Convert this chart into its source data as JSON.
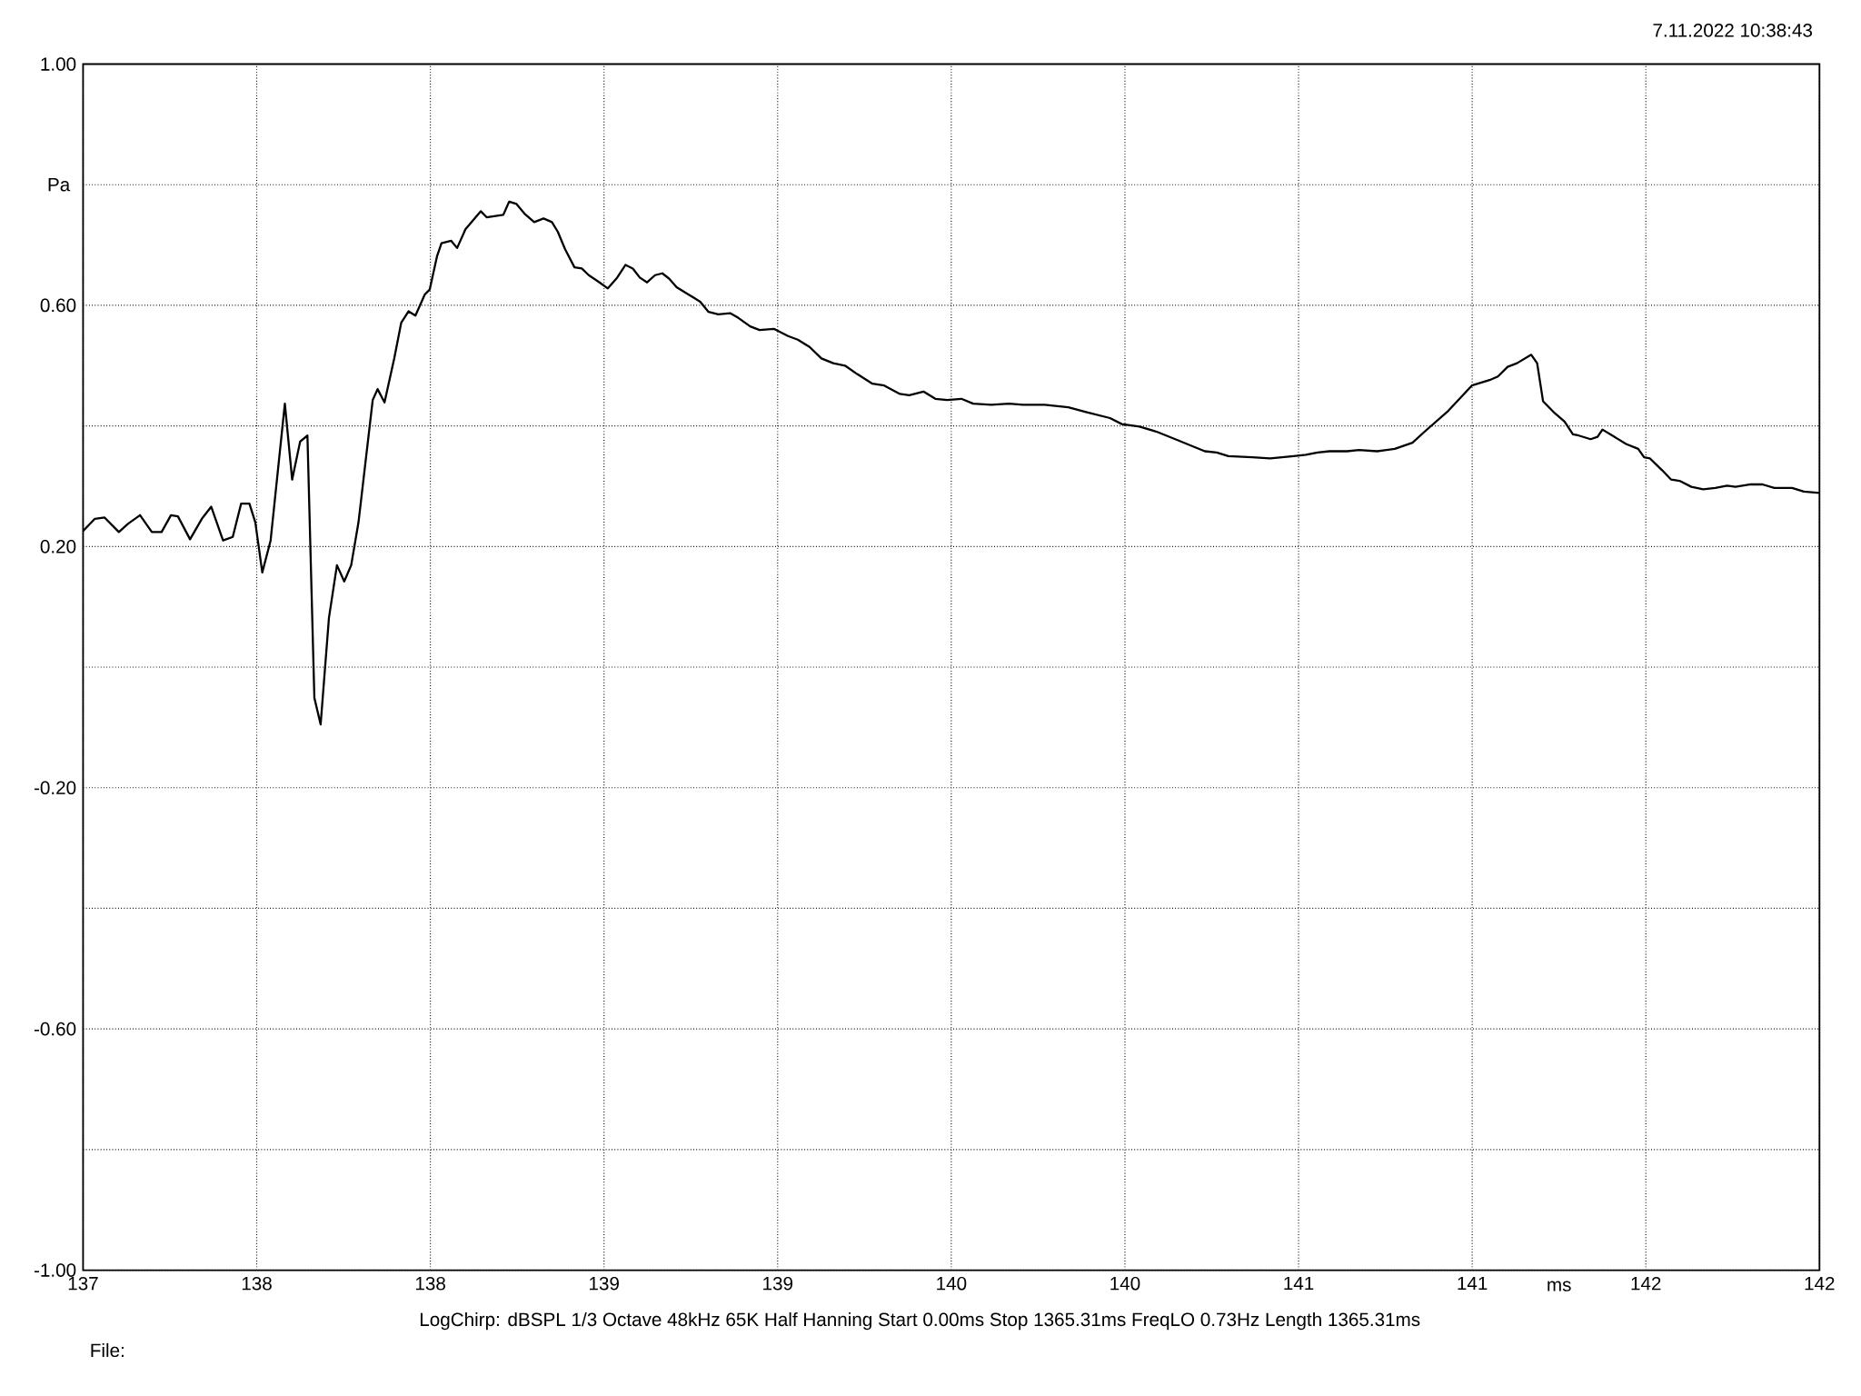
{
  "chart_data": {
    "type": "line",
    "subtitle": "7.11.2022 10:38:43",
    "xlabel": "ms",
    "ylabel": "Pa",
    "annotations": [
      "LogChirp: dBSPL 1/3 Octave 48kHz 65K Half Hanning Start 0.00ms Stop 1365.31ms FreqLO 0.73Hz Length 1365.31ms",
      "File:"
    ],
    "x": [
      137.0,
      137.034,
      137.062,
      137.103,
      137.13,
      137.164,
      137.198,
      137.226,
      137.253,
      137.273,
      137.308,
      137.342,
      137.369,
      137.403,
      137.431,
      137.455,
      137.479,
      137.496,
      137.516,
      137.54,
      137.581,
      137.602,
      137.625,
      137.646,
      137.666,
      137.684,
      137.708,
      137.731,
      137.752,
      137.772,
      137.793,
      137.834,
      137.848,
      137.868,
      137.896,
      137.916,
      137.937,
      137.957,
      137.984,
      137.998,
      138.019,
      138.032,
      138.06,
      138.077,
      138.101,
      138.145,
      138.162,
      138.21,
      138.227,
      138.248,
      138.271,
      138.299,
      138.326,
      138.35,
      138.367,
      138.388,
      138.415,
      138.436,
      138.456,
      138.487,
      138.511,
      138.538,
      138.562,
      138.583,
      138.603,
      138.624,
      138.647,
      138.668,
      138.688,
      138.709,
      138.743,
      138.777,
      138.801,
      138.829,
      138.863,
      138.887,
      138.921,
      138.948,
      138.989,
      139.03,
      139.058,
      139.092,
      139.126,
      139.16,
      139.194,
      139.229,
      139.273,
      139.307,
      139.352,
      139.379,
      139.42,
      139.454,
      139.488,
      139.529,
      139.563,
      139.615,
      139.666,
      139.707,
      139.769,
      139.837,
      139.888,
      139.957,
      139.991,
      140.042,
      140.093,
      140.145,
      140.179,
      140.23,
      140.264,
      140.298,
      140.367,
      140.418,
      140.452,
      140.486,
      140.521,
      140.555,
      140.589,
      140.64,
      140.674,
      140.726,
      140.777,
      140.828,
      140.862,
      140.931,
      140.999,
      141.05,
      141.074,
      141.102,
      141.129,
      141.17,
      141.187,
      141.204,
      141.238,
      141.266,
      141.29,
      141.307,
      141.341,
      141.361,
      141.375,
      141.409,
      141.443,
      141.478,
      141.495,
      141.512,
      141.546,
      141.573,
      141.597,
      141.631,
      141.665,
      141.7,
      141.734,
      141.758,
      141.802,
      141.836,
      141.87,
      141.921,
      141.955,
      142.0
    ],
    "series": [
      {
        "color": "#000000",
        "values": [
          0.226,
          0.246,
          0.248,
          0.224,
          0.238,
          0.252,
          0.224,
          0.224,
          0.252,
          0.25,
          0.212,
          0.246,
          0.266,
          0.21,
          0.216,
          0.271,
          0.271,
          0.24,
          0.157,
          0.21,
          0.437,
          0.311,
          0.374,
          0.384,
          -0.051,
          -0.095,
          0.082,
          0.169,
          0.142,
          0.169,
          0.24,
          0.443,
          0.461,
          0.439,
          0.512,
          0.571,
          0.59,
          0.583,
          0.618,
          0.626,
          0.681,
          0.703,
          0.707,
          0.695,
          0.726,
          0.756,
          0.746,
          0.75,
          0.772,
          0.768,
          0.752,
          0.738,
          0.744,
          0.738,
          0.722,
          0.693,
          0.663,
          0.661,
          0.65,
          0.638,
          0.628,
          0.646,
          0.667,
          0.661,
          0.646,
          0.638,
          0.65,
          0.653,
          0.644,
          0.63,
          0.618,
          0.606,
          0.589,
          0.585,
          0.587,
          0.579,
          0.565,
          0.559,
          0.561,
          0.549,
          0.543,
          0.531,
          0.512,
          0.504,
          0.5,
          0.486,
          0.47,
          0.467,
          0.453,
          0.451,
          0.457,
          0.445,
          0.443,
          0.445,
          0.437,
          0.435,
          0.437,
          0.435,
          0.435,
          0.431,
          0.423,
          0.413,
          0.403,
          0.399,
          0.39,
          0.378,
          0.37,
          0.358,
          0.356,
          0.35,
          0.348,
          0.346,
          0.348,
          0.35,
          0.352,
          0.356,
          0.358,
          0.358,
          0.36,
          0.358,
          0.362,
          0.372,
          0.39,
          0.425,
          0.467,
          0.476,
          0.482,
          0.498,
          0.504,
          0.518,
          0.504,
          0.441,
          0.421,
          0.407,
          0.386,
          0.384,
          0.378,
          0.382,
          0.394,
          0.382,
          0.37,
          0.362,
          0.348,
          0.346,
          0.327,
          0.311,
          0.309,
          0.299,
          0.295,
          0.297,
          0.301,
          0.299,
          0.303,
          0.303,
          0.297,
          0.297,
          0.291,
          0.289
        ]
      }
    ],
    "xlim": [
      137,
      142
    ],
    "ylim": [
      -1,
      1
    ],
    "xticks": [
      {
        "value": 137.0,
        "label": "137"
      },
      {
        "value": 137.5,
        "label": "138"
      },
      {
        "value": 138.0,
        "label": "138"
      },
      {
        "value": 138.5,
        "label": "139"
      },
      {
        "value": 139.0,
        "label": "139"
      },
      {
        "value": 139.5,
        "label": "140"
      },
      {
        "value": 140.0,
        "label": "140"
      },
      {
        "value": 140.5,
        "label": "141"
      },
      {
        "value": 141.0,
        "label": "141"
      },
      {
        "value": 141.5,
        "label": "142"
      },
      {
        "value": 142.0,
        "label": "142"
      }
    ],
    "yticks": [
      {
        "value": -1,
        "label": "-1.00"
      },
      {
        "value": -0.8,
        "label": null
      },
      {
        "value": -0.6,
        "label": "-0.60"
      },
      {
        "value": -0.4,
        "label": null
      },
      {
        "value": -0.2,
        "label": "-0.20"
      },
      {
        "value": 0,
        "label": null
      },
      {
        "value": 0.2,
        "label": "0.20"
      },
      {
        "value": 0.4,
        "label": null
      },
      {
        "value": 0.6,
        "label": "0.60"
      },
      {
        "value": 0.8,
        "label": null
      },
      {
        "value": 1,
        "label": "1.00"
      }
    ],
    "grid": true,
    "marker": "none",
    "line_style": "solid"
  }
}
